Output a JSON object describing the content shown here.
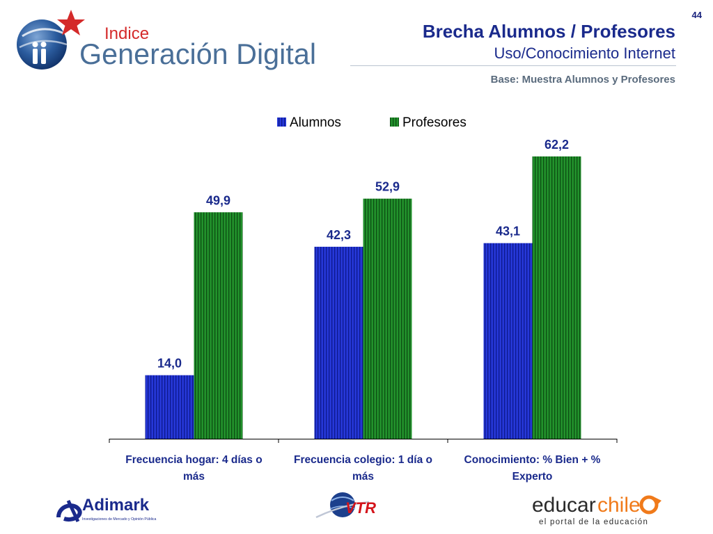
{
  "page_number": "44",
  "header": {
    "title": "Brecha Alumnos / Profesores",
    "subtitle": "Uso/Conocimiento Internet",
    "base_note": "Base: Muestra Alumnos y Profesores"
  },
  "logos": {
    "main_small": "Indice",
    "main_large": "Generación Digital",
    "adimark": "Adimark",
    "adimark_tagline": "Investigaciones de Mercado y Opinión Pública",
    "vtr": "VTR",
    "educar_a": "educar",
    "educar_b": "chile",
    "educar_tagline": "el portal de la educación"
  },
  "colors": {
    "title": "#1a2a8c",
    "alumnos": "#2a3de0",
    "profesores": "#1f8a2a"
  },
  "chart_data": {
    "type": "bar",
    "categories": [
      [
        "Frecuencia hogar: 4 días o",
        "más"
      ],
      [
        "Frecuencia colegio: 1 día o",
        "más"
      ],
      [
        "Conocimiento: % Bien + %",
        "Experto"
      ]
    ],
    "series": [
      {
        "name": "Alumnos",
        "values": [
          14.0,
          42.3,
          43.1
        ],
        "labels": [
          "14,0",
          "42,3",
          "43,1"
        ]
      },
      {
        "name": "Profesores",
        "values": [
          49.9,
          52.9,
          62.2
        ],
        "labels": [
          "49,9",
          "52,9",
          "62,2"
        ]
      }
    ],
    "legend_position": "top-center",
    "grid": false,
    "ylim": [
      0,
      62.2
    ]
  }
}
